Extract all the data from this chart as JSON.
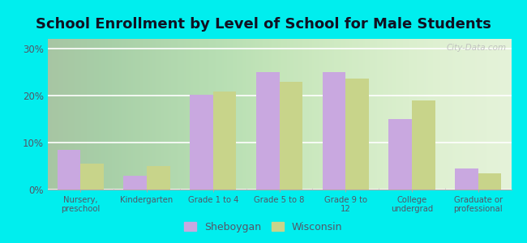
{
  "title": "School Enrollment by Level of School for Male Students",
  "categories": [
    "Nursery,\npreschool",
    "Kindergarten",
    "Grade 1 to 4",
    "Grade 5 to 8",
    "Grade 9 to\n12",
    "College\nundergrad",
    "Graduate or\nprofessional"
  ],
  "sheboygan": [
    8.5,
    3.0,
    20.2,
    25.0,
    25.0,
    15.0,
    4.5
  ],
  "wisconsin": [
    5.5,
    5.0,
    20.8,
    22.8,
    23.5,
    19.0,
    3.5
  ],
  "sheboygan_color": "#c9a8e0",
  "wisconsin_color": "#c8d48a",
  "bar_width": 0.35,
  "ylim": [
    0,
    32
  ],
  "yticks": [
    0,
    10,
    20,
    30
  ],
  "ytick_labels": [
    "0%",
    "10%",
    "20%",
    "30%"
  ],
  "background_color": "#00eeee",
  "plot_bg_color": "#e8f5e0",
  "title_fontsize": 13,
  "title_color": "#111122",
  "tick_color": "#555566",
  "legend_labels": [
    "Sheboygan",
    "Wisconsin"
  ],
  "watermark": "City-Data.com"
}
